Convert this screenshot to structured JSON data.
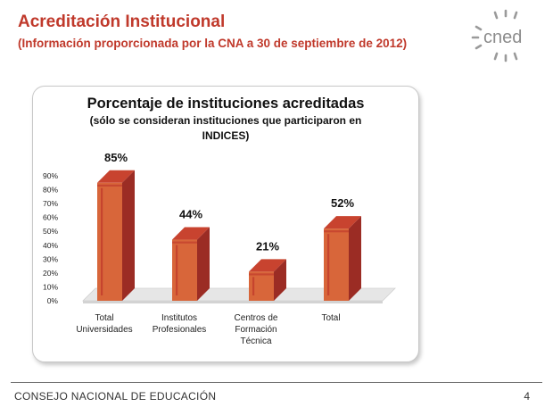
{
  "header": {
    "title": "Acreditación Institucional",
    "subtitle": "(Información proporcionada por la CNA a 30 de septiembre de 2012)"
  },
  "logo": {
    "text": "cned",
    "icon": "sunburst-logo-icon"
  },
  "chart_data": {
    "type": "bar",
    "title": "Porcentaje de instituciones acreditadas",
    "subtitle_lines": [
      "(sólo se consideran instituciones que participaron en",
      "INDICES)"
    ],
    "categories": [
      [
        "Total",
        "Universidades"
      ],
      [
        "Institutos",
        "Profesionales"
      ],
      [
        "Centros de",
        "Formación",
        "Técnica"
      ],
      [
        "Total"
      ]
    ],
    "values": [
      85,
      44,
      21,
      52
    ],
    "data_labels": [
      "85%",
      "44%",
      "21%",
      "52%"
    ],
    "ylim": [
      0,
      90
    ],
    "yticks": [
      "0%",
      "10%",
      "20%",
      "30%",
      "40%",
      "50%",
      "60%",
      "70%",
      "80%",
      "90%"
    ],
    "bar_colors": {
      "front": "#d8663a",
      "side": "#9b2c24",
      "top": "#c8432f",
      "accent": "#c0392b"
    },
    "floor_color": "#e6e6e6",
    "legend": "none",
    "grid": false
  },
  "footer": {
    "organization": "CONSEJO NACIONAL DE EDUCACIÓN",
    "page": "4"
  }
}
